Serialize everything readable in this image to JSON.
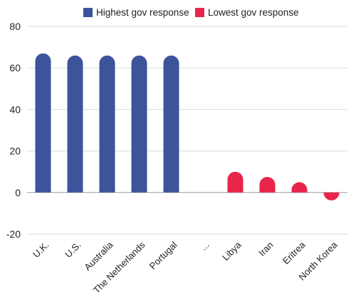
{
  "chart_data": {
    "type": "bar",
    "title": "",
    "xlabel": "",
    "ylabel": "",
    "ylim": [
      -20,
      80
    ],
    "yticks": [
      -20,
      0,
      20,
      40,
      60,
      80
    ],
    "grid": true,
    "legend_position": "top",
    "categories": [
      "U.K.",
      "U.S.",
      "Australia",
      "The Netherlands",
      "Portugal",
      "...",
      "Libya",
      "Iran",
      "Eritrea",
      "North Korea"
    ],
    "series": [
      {
        "name": "Highest gov response",
        "color": "#3b549c",
        "values": [
          67,
          66,
          66,
          66,
          66,
          null,
          null,
          null,
          null,
          null
        ]
      },
      {
        "name": "Lowest gov response",
        "color": "#e8254a",
        "values": [
          null,
          null,
          null,
          null,
          null,
          null,
          10,
          7.5,
          5,
          -2.5
        ]
      }
    ]
  }
}
